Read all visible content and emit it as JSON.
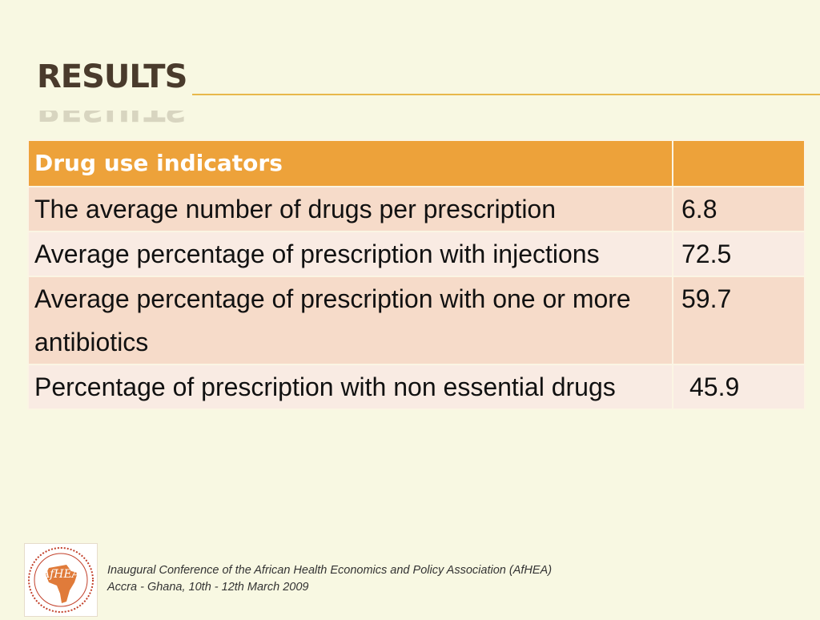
{
  "slide": {
    "title": "RESULTS"
  },
  "table": {
    "header": {
      "label": "Drug use indicators",
      "value": ""
    },
    "rows": [
      {
        "label": "The average number of drugs per prescription",
        "value": "6.8"
      },
      {
        "label": "Average percentage of prescription with injections",
        "value": "72.5"
      },
      {
        "label": "Average percentage of prescription with one or more antibiotics",
        "value": "59.7"
      },
      {
        "label": "Percentage of prescription with non essential drugs",
        "value": "45.9"
      }
    ]
  },
  "logo": {
    "text": "AfHEA"
  },
  "footer": {
    "line1": "Inaugural Conference of the African Health Economics and Policy Association (AfHEA)",
    "line2": "Accra - Ghana, 10th - 12th March 2009"
  },
  "colors": {
    "background": "#f8f8e2",
    "header_fill": "#eda23a",
    "row_odd": "#f6dbc9",
    "row_even": "#f9ebe3",
    "rule": "#e8b84a"
  }
}
